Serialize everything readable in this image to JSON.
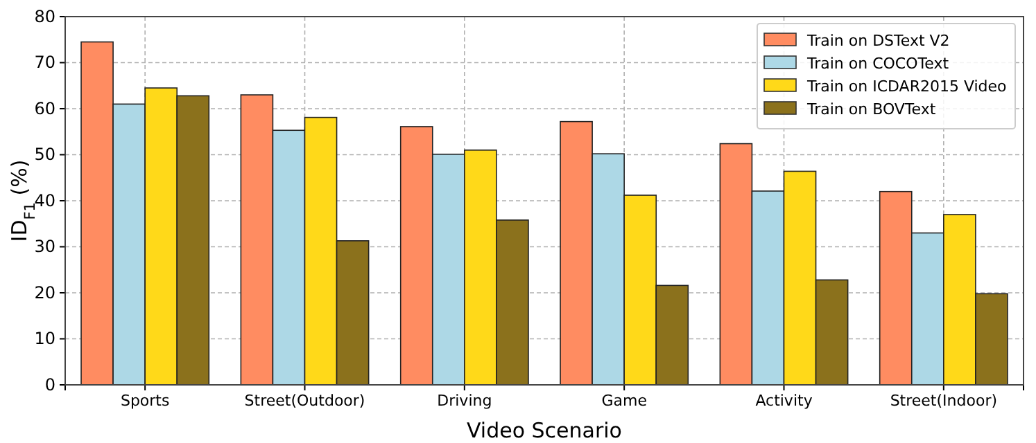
{
  "chart_data": {
    "type": "bar",
    "xlabel": "Video Scenario",
    "ylabel": "ID$_{F1}$ (%)",
    "categories": [
      "Sports",
      "Street(Outdoor)",
      "Driving",
      "Game",
      "Activity",
      "Street(Indoor)"
    ],
    "series": [
      {
        "name": "Train on DSText V2",
        "color": "#ff8c61",
        "values": [
          74.5,
          63,
          56.1,
          57.2,
          52.4,
          42
        ]
      },
      {
        "name": "Train on COCOText",
        "color": "#add8e6",
        "values": [
          61,
          55.3,
          50.1,
          50.2,
          42.1,
          33
        ]
      },
      {
        "name": "Train on ICDAR2015 Video",
        "color": "#ffd919",
        "values": [
          64.5,
          58.1,
          51,
          41.2,
          46.4,
          37
        ]
      },
      {
        "name": "Train on BOVText",
        "color": "#8b711c",
        "values": [
          62.8,
          31.3,
          35.8,
          21.6,
          22.8,
          19.8
        ]
      }
    ],
    "ylim": [
      0,
      80
    ],
    "yticks": [
      0,
      10,
      20,
      30,
      40,
      50,
      60,
      70,
      80
    ],
    "grid": true,
    "legend": "top right"
  }
}
